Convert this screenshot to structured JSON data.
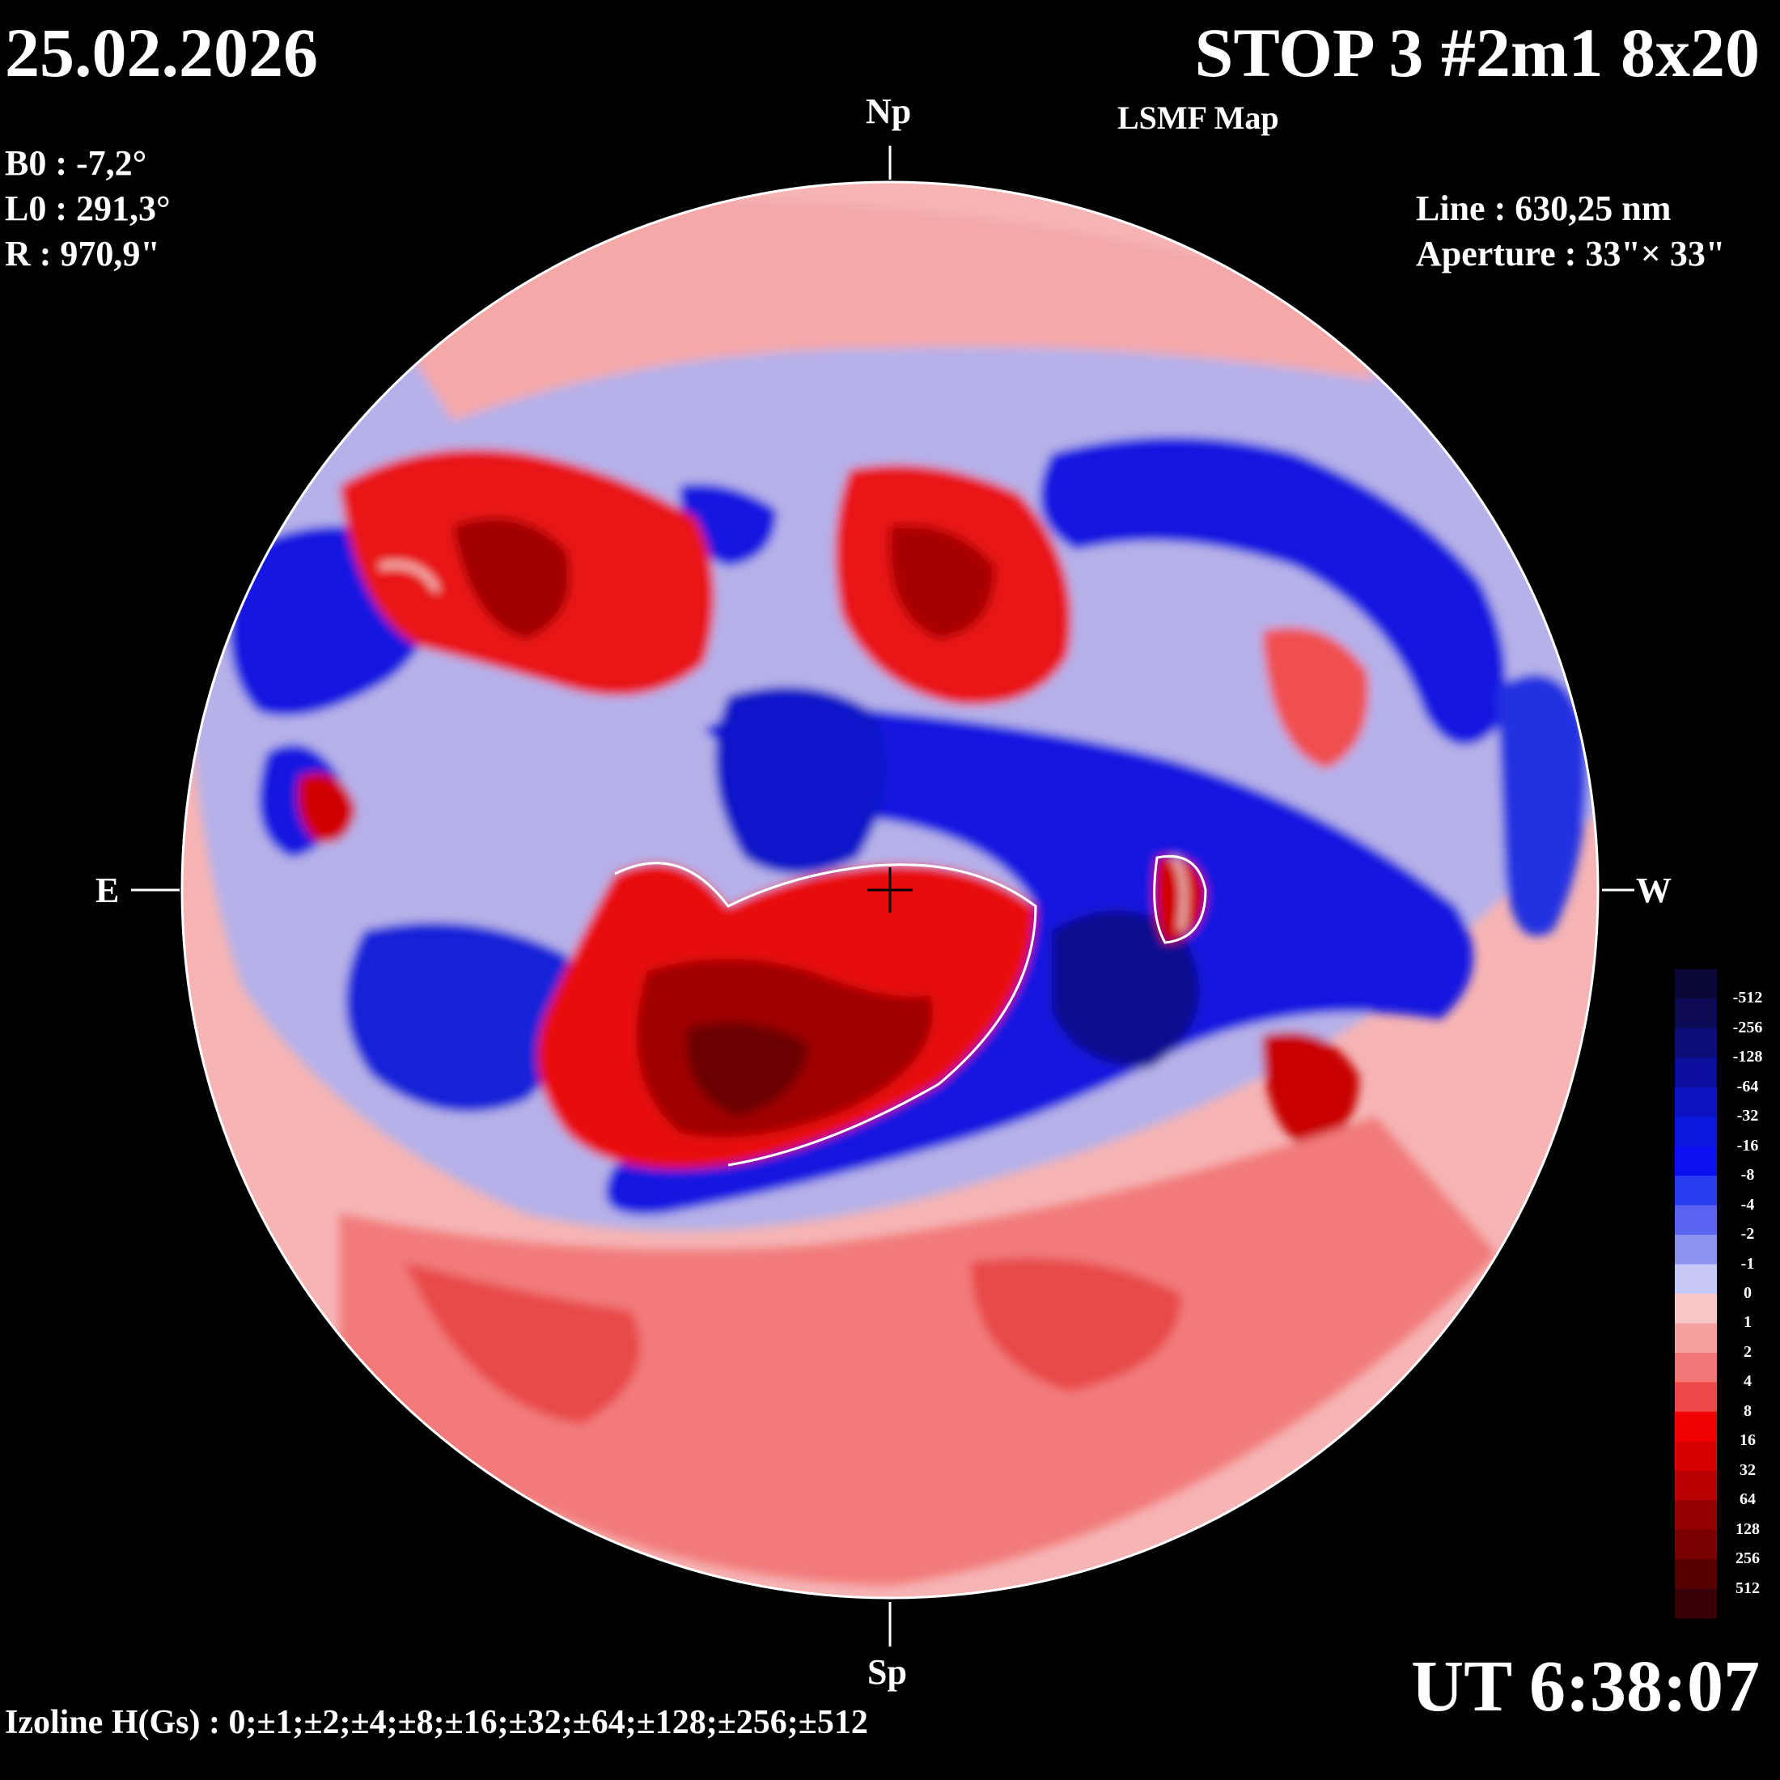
{
  "header": {
    "date": "25.02.2026",
    "title": "STOP 3 #2m1 8x20",
    "subtitle": "LSMF  Map"
  },
  "params": {
    "b0": "B0 : -7,2°",
    "l0": "L0 : 291,3°",
    "r": "R  : 970,9\"",
    "line": "Line :  630,25 nm",
    "aperture": "Aperture : 33\"× 33\""
  },
  "compass": {
    "north": "Np",
    "south": "Sp",
    "east": "E",
    "west": "W"
  },
  "footer": {
    "ut": "UT 6:38:07",
    "izoline": "Izoline H(Gs) : 0;±1;±2;±4;±8;±16;±32;±64;±128;±256;±512"
  },
  "colorbar": {
    "labels": [
      "-512",
      "-256",
      "-128",
      "-64",
      "-32",
      "-16",
      "-8",
      "-4",
      "-2",
      "-1",
      "0",
      "1",
      "2",
      "4",
      "8",
      "16",
      "32",
      "64",
      "128",
      "256",
      "512"
    ],
    "colors": [
      "#0a0635",
      "#0c0a55",
      "#0a0c78",
      "#0a109c",
      "#0a14c0",
      "#0c18dc",
      "#0a10f0",
      "#2a3cf0",
      "#5a64f0",
      "#8c94f0",
      "#c6c8f6",
      "#f8c8c8",
      "#f6a0a0",
      "#f07878",
      "#f04848",
      "#f00000",
      "#d80000",
      "#b80000",
      "#960000",
      "#780000",
      "#560000",
      "#380006"
    ]
  },
  "features": {
    "positive_polarity_color": "#e8141c",
    "negative_polarity_color": "#1020d8",
    "center_marker": "crosshair"
  }
}
